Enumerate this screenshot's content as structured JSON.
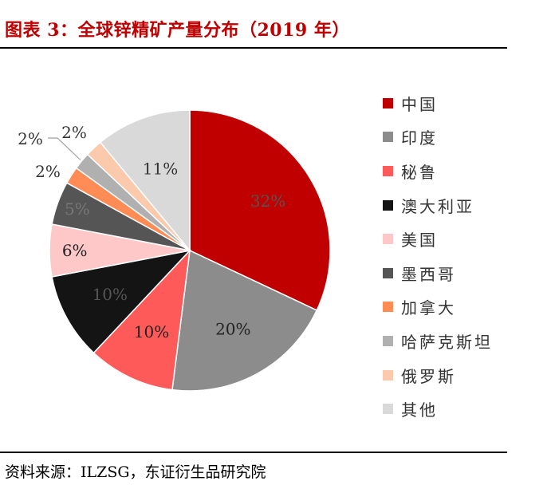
{
  "header": {
    "title": "图表 3：全球锌精矿产量分布（2019 年）"
  },
  "footer": {
    "source": "资料来源：ILZSG，东证衍生品研究院"
  },
  "chart_data": {
    "type": "pie",
    "title": "",
    "legend_position": "right",
    "slices": [
      {
        "label": "中国",
        "value": 32,
        "value_label": "32%",
        "color": "#c00000",
        "label_color": "#555555"
      },
      {
        "label": "印度",
        "value": 20,
        "value_label": "20%",
        "color": "#8c8c8c",
        "label_color": "#222222"
      },
      {
        "label": "秘鲁",
        "value": 10,
        "value_label": "10%",
        "color": "#ff5a5a",
        "label_color": "#222222"
      },
      {
        "label": "澳大利亚",
        "value": 10,
        "value_label": "10%",
        "color": "#141414",
        "label_color": "#555555"
      },
      {
        "label": "美国",
        "value": 6,
        "value_label": "6%",
        "color": "#ffc8c8",
        "label_color": "#222222"
      },
      {
        "label": "墨西哥",
        "value": 5,
        "value_label": "5%",
        "color": "#555555",
        "label_color": "#777777"
      },
      {
        "label": "加拿大",
        "value": 2,
        "value_label": "2%",
        "color": "#ff8c55",
        "label_color": "#333333"
      },
      {
        "label": "哈萨克斯坦",
        "value": 2,
        "value_label": "2%",
        "color": "#b0b0b0",
        "label_color": "#333333"
      },
      {
        "label": "俄罗斯",
        "value": 2,
        "value_label": "2%",
        "color": "#fbc9ab",
        "label_color": "#333333"
      },
      {
        "label": "其他",
        "value": 11,
        "value_label": "11%",
        "color": "#d9d9d9",
        "label_color": "#333333"
      }
    ]
  }
}
